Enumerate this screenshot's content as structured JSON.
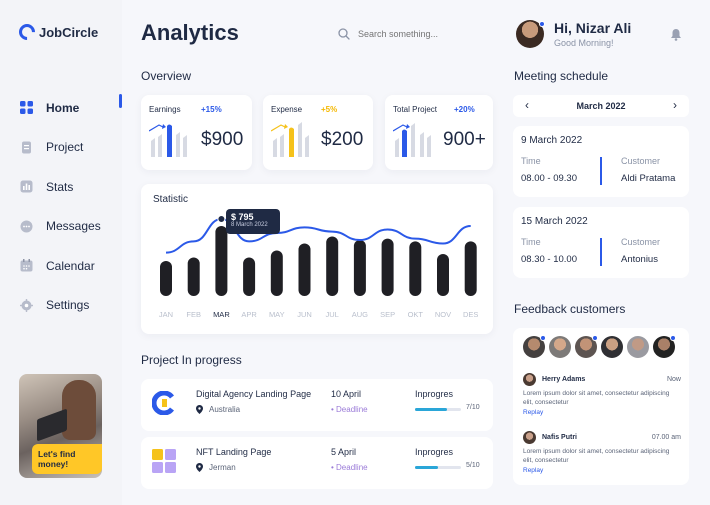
{
  "app": {
    "name": "JobCircle"
  },
  "sidebar": {
    "items": [
      {
        "label": "Home",
        "icon": "grid-icon",
        "active": true
      },
      {
        "label": "Project",
        "icon": "document-icon",
        "active": false
      },
      {
        "label": "Stats",
        "icon": "bar-chart-icon",
        "active": false
      },
      {
        "label": "Messages",
        "icon": "chat-icon",
        "active": false
      },
      {
        "label": "Calendar",
        "icon": "calendar-icon",
        "active": false
      },
      {
        "label": "Settings",
        "icon": "gear-icon",
        "active": false
      }
    ],
    "promo": {
      "label": "Let's find money!"
    }
  },
  "header": {
    "title": "Analytics",
    "search_placeholder": "Search something...",
    "user_name": "Hi, Nizar Ali",
    "greeting": "Good Morning!"
  },
  "overview": {
    "title": "Overview",
    "cards": [
      {
        "label": "Earnings",
        "change": "+15%",
        "value": "$900",
        "change_color": "#2b59e8",
        "accent": "#2b59e8"
      },
      {
        "label": "Expense",
        "change": "+5%",
        "value": "$200",
        "change_color": "#f5b800",
        "accent": "#f5c21b"
      },
      {
        "label": "Total Project",
        "change": "+20%",
        "value": "900+",
        "change_color": "#2b59e8",
        "accent": "#2b59e8"
      }
    ]
  },
  "statistic": {
    "title": "Statistic",
    "tooltip_value": "$ 795",
    "tooltip_date": "8 March 2022"
  },
  "chart_data": {
    "type": "bar",
    "title": "Statistic",
    "categories": [
      "JAN",
      "FEB",
      "MAR",
      "APR",
      "MAY",
      "JUN",
      "JUL",
      "AUG",
      "SEP",
      "OKT",
      "NOV",
      "DES"
    ],
    "selected": "MAR",
    "series": [
      {
        "values": [
          50,
          55,
          100,
          55,
          65,
          75,
          85,
          80,
          82,
          78,
          60,
          78
        ]
      },
      {
        "values": [
          62,
          78,
          110,
          78,
          90,
          98,
          92,
          80,
          95,
          82,
          75,
          100
        ]
      }
    ]
  },
  "projects": {
    "title": "Project In progress",
    "items": [
      {
        "name": "Digital Agency Landing Page",
        "location": "Australia",
        "date": "10 April",
        "deadline": "Deadline",
        "status": "Inprogres",
        "progress": 0.7,
        "progress_text": "7/10"
      },
      {
        "name": "NFT Landing Page",
        "location": "Jerman",
        "date": "5 April",
        "deadline": "Deadline",
        "status": "Inprogres",
        "progress": 0.5,
        "progress_text": "5/10"
      }
    ]
  },
  "meetings": {
    "title": "Meeting schedule",
    "month": "March 2022",
    "items": [
      {
        "date": "9 March 2022",
        "time_label": "Time",
        "time": "08.00 - 09.30",
        "customer_label": "Customer",
        "customer": "Aldi Pratama"
      },
      {
        "date": "15 March 2022",
        "time_label": "Time",
        "time": "08.30 - 10.00",
        "customer_label": "Customer",
        "customer": "Antonius"
      }
    ]
  },
  "feedback": {
    "title": "Feedback customers",
    "items": [
      {
        "name": "Herry Adams",
        "time": "Now",
        "text": "Lorem ipsum dolor sit amet, consectetur adipiscing elit, consectetur",
        "reply": "Replay"
      },
      {
        "name": "Nafis Putri",
        "time": "07.00 am",
        "text": "Lorem ipsum dolor sit amet, consectetur adipiscing elit, consectetur",
        "reply": "Replay"
      }
    ]
  }
}
